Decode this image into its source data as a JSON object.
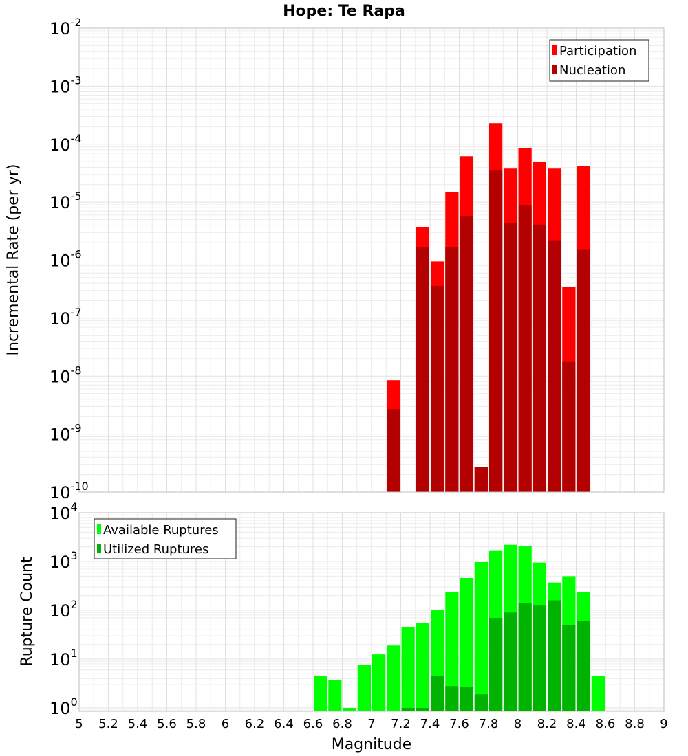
{
  "chart_data": [
    {
      "type": "bar",
      "title": "Hope: Te Rapa",
      "xlabel": "",
      "ylabel": "Incremental Rate (per yr)",
      "yscale": "log",
      "ylim_exponents": [
        -10,
        -2
      ],
      "xlim": [
        5,
        9
      ],
      "bin_width": 0.1,
      "legend_position": "top-right",
      "colors": {
        "participation": "#ff0000",
        "nucleation": "#b30000"
      },
      "series": [
        {
          "name": "Participation",
          "x": [
            7.1,
            7.3,
            7.4,
            7.5,
            7.6,
            7.7,
            7.8,
            7.9,
            8.0,
            8.1,
            8.2,
            8.3,
            8.4
          ],
          "values": [
            8.5e-09,
            3.7e-06,
            9.5e-07,
            1.5e-05,
            6.2e-05,
            2.7e-10,
            0.00023,
            3.8e-05,
            8.5e-05,
            4.9e-05,
            3.8e-05,
            3.5e-07,
            4.2e-05
          ]
        },
        {
          "name": "Nucleation",
          "x": [
            7.1,
            7.3,
            7.4,
            7.5,
            7.6,
            7.7,
            7.8,
            7.9,
            8.0,
            8.1,
            8.2,
            8.3,
            8.4
          ],
          "values": [
            2.7e-09,
            1.7e-06,
            3.6e-07,
            1.7e-06,
            5.8e-06,
            2.7e-10,
            3.5e-05,
            4.4e-06,
            9e-06,
            4.1e-06,
            2.2e-06,
            1.8e-08,
            1.5e-06
          ]
        }
      ],
      "y_tick_exponents": [
        "-2",
        "-3",
        "-4",
        "-5",
        "-6",
        "-7",
        "-8",
        "-9",
        "-10"
      ]
    },
    {
      "type": "bar",
      "title": "",
      "xlabel": "Magnitude",
      "ylabel": "Rupture Count",
      "yscale": "log",
      "ylim_exponents": [
        -0.07,
        4
      ],
      "xlim": [
        5,
        9
      ],
      "bin_width": 0.1,
      "legend_position": "top-left",
      "colors": {
        "available": "#00ff00",
        "utilized": "#00b300"
      },
      "series": [
        {
          "name": "Available Ruptures",
          "x": [
            6.6,
            6.7,
            6.8,
            6.9,
            7.0,
            7.1,
            7.2,
            7.3,
            7.4,
            7.5,
            7.6,
            7.7,
            7.8,
            7.9,
            8.0,
            8.1,
            8.2,
            8.3,
            8.4,
            8.5
          ],
          "values": [
            4.6,
            3.7,
            1.0,
            7.5,
            12.5,
            19,
            45,
            55,
            100,
            240,
            460,
            980,
            1700,
            2200,
            2100,
            950,
            370,
            500,
            240,
            4.6
          ]
        },
        {
          "name": "Utilized Ruptures",
          "x": [
            7.2,
            7.3,
            7.4,
            7.5,
            7.6,
            7.7,
            7.8,
            7.9,
            8.0,
            8.1,
            8.2,
            8.3,
            8.4
          ],
          "values": [
            1.0,
            1.0,
            4.6,
            2.8,
            2.7,
            1.9,
            70,
            90,
            140,
            125,
            160,
            50,
            60
          ]
        }
      ],
      "y_tick_exponents": [
        "0",
        "1",
        "2",
        "3",
        "4"
      ],
      "x_ticks": [
        "5",
        "5.2",
        "5.4",
        "5.6",
        "5.8",
        "6",
        "6.2",
        "6.4",
        "6.6",
        "6.8",
        "7",
        "7.2",
        "7.4",
        "7.6",
        "7.8",
        "8",
        "8.2",
        "8.4",
        "8.6",
        "8.8",
        "9"
      ]
    }
  ]
}
